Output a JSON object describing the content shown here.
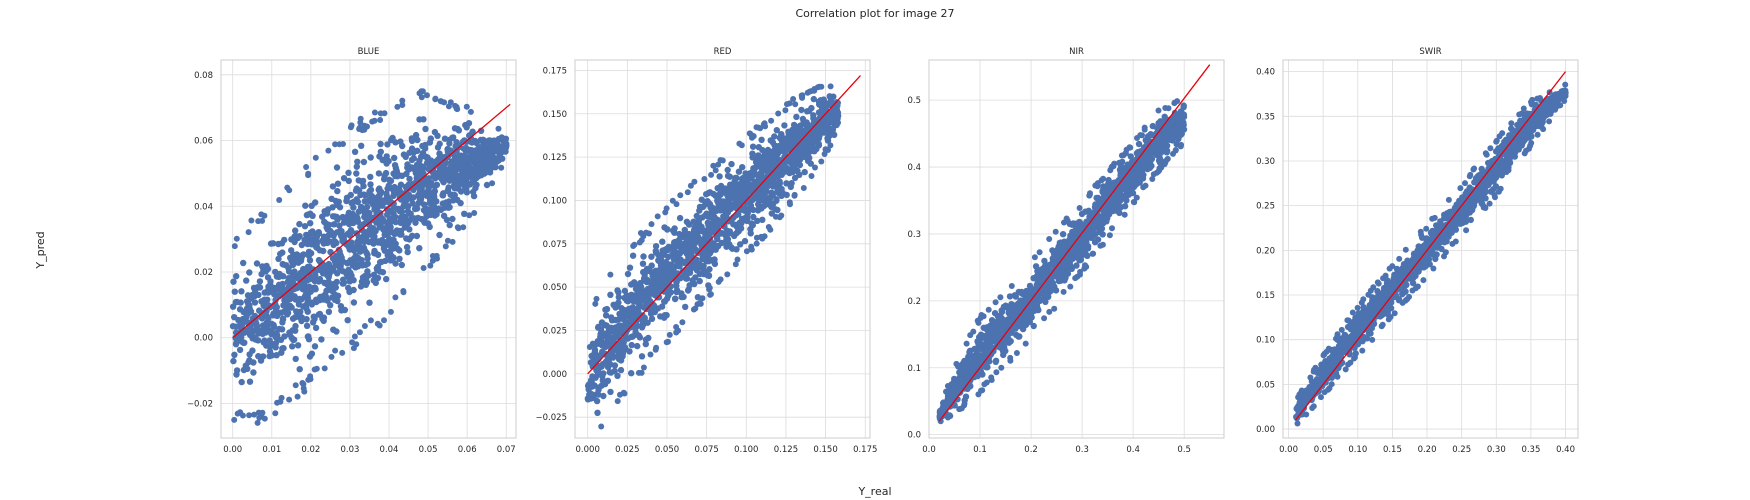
{
  "figure": {
    "suptitle": "Correlation plot for image 27",
    "xlabel": "Y_real",
    "ylabel": "Y_pred"
  },
  "colors": {
    "points": "#4c72b0",
    "fit_line": "#e8000b",
    "grid": "#dcdcdc",
    "frame": "#cccccc"
  },
  "chart_data": [
    {
      "type": "scatter",
      "title": "BLUE",
      "xlim": [
        -0.003,
        0.0725
      ],
      "ylim": [
        -0.0305,
        0.0845
      ],
      "xticks": [
        0.0,
        0.01,
        0.02,
        0.03,
        0.04,
        0.05,
        0.06,
        0.07
      ],
      "xtick_labels": [
        "0.00",
        "0.01",
        "0.02",
        "0.03",
        "0.04",
        "0.05",
        "0.06",
        "0.07"
      ],
      "yticks": [
        -0.02,
        0.0,
        0.02,
        0.04,
        0.06,
        0.08
      ],
      "ytick_labels": [
        "−0.02",
        "0.00",
        "0.02",
        "0.04",
        "0.06",
        "0.08"
      ],
      "grid": true,
      "fit_line": {
        "x": [
          0.0,
          0.071
        ],
        "y": [
          0.0,
          0.071
        ]
      },
      "point_cloud": [
        [
          0.0,
          -0.022,
          0.027
        ],
        [
          0.005,
          -0.022,
          0.033
        ],
        [
          0.01,
          -0.02,
          0.038
        ],
        [
          0.015,
          -0.015,
          0.043
        ],
        [
          0.02,
          -0.01,
          0.05
        ],
        [
          0.025,
          -0.005,
          0.055
        ],
        [
          0.03,
          0.0,
          0.06
        ],
        [
          0.035,
          0.005,
          0.064
        ],
        [
          0.04,
          0.01,
          0.067
        ],
        [
          0.045,
          0.018,
          0.07
        ],
        [
          0.05,
          0.025,
          0.072
        ],
        [
          0.055,
          0.03,
          0.07
        ],
        [
          0.06,
          0.037,
          0.068
        ],
        [
          0.065,
          0.045,
          0.065
        ],
        [
          0.07,
          0.055,
          0.062
        ]
      ]
    },
    {
      "type": "scatter",
      "title": "RED",
      "xlim": [
        -0.008,
        0.178
      ],
      "ylim": [
        -0.037,
        0.181
      ],
      "xticks": [
        0.0,
        0.025,
        0.05,
        0.075,
        0.1,
        0.125,
        0.15,
        0.175
      ],
      "xtick_labels": [
        "0.000",
        "0.025",
        "0.050",
        "0.075",
        "0.100",
        "0.125",
        "0.150",
        "0.175"
      ],
      "yticks": [
        -0.025,
        0.0,
        0.025,
        0.05,
        0.075,
        0.1,
        0.125,
        0.15,
        0.175
      ],
      "ytick_labels": [
        "−0.025",
        "0.000",
        "0.025",
        "0.050",
        "0.075",
        "0.100",
        "0.125",
        "0.150",
        "0.175"
      ],
      "grid": true,
      "fit_line": {
        "x": [
          0.0,
          0.172
        ],
        "y": [
          0.0,
          0.172
        ]
      },
      "point_cloud": [
        [
          0.0,
          -0.025,
          0.005
        ],
        [
          0.005,
          -0.03,
          0.04
        ],
        [
          0.01,
          -0.025,
          0.05
        ],
        [
          0.02,
          -0.01,
          0.062
        ],
        [
          0.03,
          0.0,
          0.072
        ],
        [
          0.04,
          0.012,
          0.082
        ],
        [
          0.05,
          0.022,
          0.092
        ],
        [
          0.06,
          0.033,
          0.1
        ],
        [
          0.07,
          0.043,
          0.108
        ],
        [
          0.08,
          0.053,
          0.116
        ],
        [
          0.09,
          0.063,
          0.125
        ],
        [
          0.1,
          0.072,
          0.133
        ],
        [
          0.11,
          0.082,
          0.14
        ],
        [
          0.12,
          0.092,
          0.148
        ],
        [
          0.13,
          0.103,
          0.155
        ],
        [
          0.14,
          0.115,
          0.16
        ],
        [
          0.15,
          0.128,
          0.165
        ],
        [
          0.158,
          0.14,
          0.162
        ]
      ]
    },
    {
      "type": "scatter",
      "title": "NIR",
      "xlim": [
        0.0,
        0.578
      ],
      "ylim": [
        -0.005,
        0.56
      ],
      "xticks": [
        0.0,
        0.1,
        0.2,
        0.3,
        0.4,
        0.5
      ],
      "xtick_labels": [
        "0.0",
        "0.1",
        "0.2",
        "0.3",
        "0.4",
        "0.5"
      ],
      "yticks": [
        0.0,
        0.1,
        0.2,
        0.3,
        0.4,
        0.5
      ],
      "ytick_labels": [
        "0.0",
        "0.1",
        "0.2",
        "0.3",
        "0.4",
        "0.5"
      ],
      "grid": true,
      "fit_line": {
        "x": [
          0.02,
          0.55
        ],
        "y": [
          0.02,
          0.553
        ]
      },
      "point_cloud": [
        [
          0.02,
          0.02,
          0.035
        ],
        [
          0.05,
          0.035,
          0.1
        ],
        [
          0.1,
          0.07,
          0.17
        ],
        [
          0.15,
          0.11,
          0.21
        ],
        [
          0.2,
          0.15,
          0.25
        ],
        [
          0.25,
          0.2,
          0.3
        ],
        [
          0.3,
          0.25,
          0.34
        ],
        [
          0.35,
          0.3,
          0.39
        ],
        [
          0.4,
          0.35,
          0.43
        ],
        [
          0.45,
          0.4,
          0.48
        ],
        [
          0.5,
          0.44,
          0.5
        ]
      ]
    },
    {
      "type": "scatter",
      "title": "SWIR",
      "xlim": [
        -0.008,
        0.418
      ],
      "ylim": [
        -0.01,
        0.413
      ],
      "xticks": [
        0.0,
        0.05,
        0.1,
        0.15,
        0.2,
        0.25,
        0.3,
        0.35,
        0.4
      ],
      "xtick_labels": [
        "0.00",
        "0.05",
        "0.10",
        "0.15",
        "0.20",
        "0.25",
        "0.30",
        "0.35",
        "0.40"
      ],
      "yticks": [
        0.0,
        0.05,
        0.1,
        0.15,
        0.2,
        0.25,
        0.3,
        0.35,
        0.4
      ],
      "ytick_labels": [
        "0.00",
        "0.05",
        "0.10",
        "0.15",
        "0.20",
        "0.25",
        "0.30",
        "0.35",
        "0.40"
      ],
      "grid": true,
      "fit_line": {
        "x": [
          0.01,
          0.4
        ],
        "y": [
          0.01,
          0.4
        ]
      },
      "point_cloud": [
        [
          0.01,
          0.005,
          0.03
        ],
        [
          0.05,
          0.04,
          0.08
        ],
        [
          0.1,
          0.085,
          0.135
        ],
        [
          0.15,
          0.13,
          0.18
        ],
        [
          0.2,
          0.175,
          0.225
        ],
        [
          0.25,
          0.22,
          0.27
        ],
        [
          0.3,
          0.265,
          0.32
        ],
        [
          0.35,
          0.32,
          0.365
        ],
        [
          0.4,
          0.37,
          0.385
        ]
      ]
    }
  ]
}
